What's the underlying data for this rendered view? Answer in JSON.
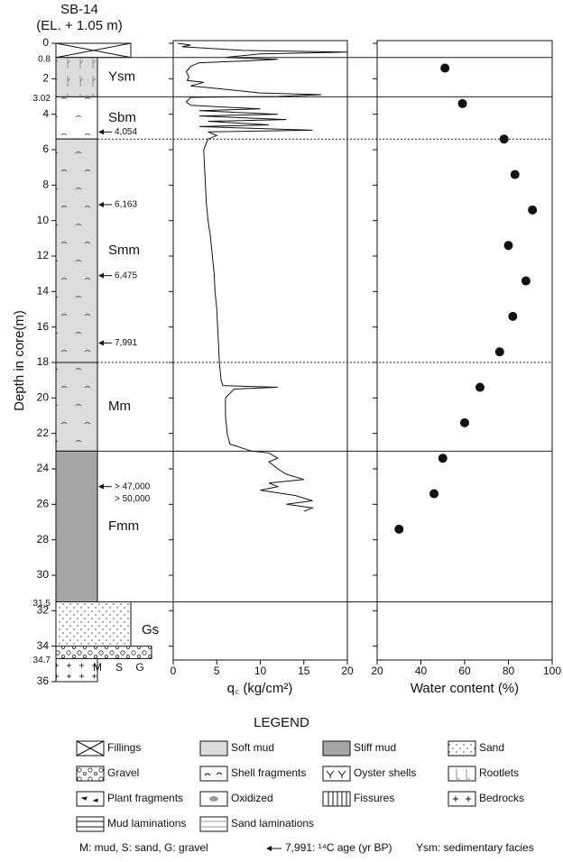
{
  "chart_data": [
    {
      "type": "log",
      "title": "SB-14",
      "subtitle": "(EL. + 1.05 m)",
      "ylabel": "Depth in core(m)",
      "ylim": [
        0,
        36
      ],
      "yticks": [
        0,
        2,
        4,
        6,
        8,
        10,
        12,
        14,
        16,
        18,
        20,
        22,
        24,
        26,
        28,
        30,
        32,
        34,
        36
      ],
      "boundary_labels": [
        0.8,
        3.02,
        31.5,
        34.7
      ],
      "grain_labels": [
        "M",
        "S",
        "G"
      ],
      "layers": [
        {
          "top": 0,
          "bottom": 0.8,
          "grain": "S",
          "color": "#ffffff",
          "pattern": "cross"
        },
        {
          "top": 0.8,
          "bottom": 3.02,
          "grain": "M",
          "color": "#dcdcdc",
          "pattern": "roots",
          "facies": "Ysm"
        },
        {
          "top": 3.02,
          "bottom": 5.4,
          "grain": "M",
          "color": "#ffffff",
          "pattern": "shells",
          "facies": "Sbm"
        },
        {
          "top": 5.4,
          "bottom": 18,
          "grain": "M",
          "color": "#dcdcdc",
          "pattern": "shells",
          "facies": "Smm"
        },
        {
          "top": 18,
          "bottom": 23,
          "grain": "M",
          "color": "#dcdcdc",
          "pattern": "shells",
          "facies": "Mm"
        },
        {
          "top": 23,
          "bottom": 31.5,
          "grain": "M",
          "color": "#a6a6a6",
          "pattern": "none",
          "facies": "Fmm"
        },
        {
          "top": 31.5,
          "bottom": 34.7,
          "grain": "S",
          "color": "#ffffff",
          "pattern": "sand",
          "facies": "Gs"
        },
        {
          "top": 34,
          "bottom": 34.7,
          "grain": "G",
          "color": "#ffffff",
          "pattern": "gravel"
        },
        {
          "top": 34.7,
          "bottom": 36,
          "grain": "M",
          "color": "#ffffff",
          "pattern": "plus"
        }
      ],
      "ages": [
        {
          "depth": 5.0,
          "label": "4,054"
        },
        {
          "depth": 9.1,
          "label": "6,163"
        },
        {
          "depth": 13.1,
          "label": "6,475"
        },
        {
          "depth": 16.9,
          "label": "7,991"
        },
        {
          "depth": 25.0,
          "label": "> 47,000"
        },
        {
          "depth": 25.7,
          "label": "> 50,000"
        }
      ],
      "boundaries": [
        {
          "depth": 0.8,
          "style": "solid"
        },
        {
          "depth": 3.02,
          "style": "solid"
        },
        {
          "depth": 5.4,
          "style": "dotted"
        },
        {
          "depth": 18,
          "style": "dotted"
        },
        {
          "depth": 23,
          "style": "solid"
        },
        {
          "depth": 31.5,
          "style": "solid"
        }
      ]
    },
    {
      "type": "line",
      "xlabel": "q꜀ (kg/cm²)",
      "xlim": [
        0,
        20
      ],
      "xticks": [
        0,
        5,
        10,
        15,
        20
      ],
      "color": "#111111",
      "depth": [
        0,
        0.1,
        0.2,
        0.4,
        0.5,
        0.6,
        0.8,
        0.9,
        1.0,
        1.1,
        1.3,
        1.6,
        1.9,
        2.1,
        2.2,
        2.4,
        2.6,
        2.8,
        2.9,
        3.0,
        3.05,
        3.3,
        3.5,
        3.7,
        3.8,
        4.0,
        4.1,
        4.3,
        4.4,
        4.6,
        4.7,
        4.9,
        5.0,
        5.2,
        5.4,
        6,
        7,
        8,
        9,
        10,
        11,
        12,
        13,
        14,
        15,
        16,
        17,
        18,
        19,
        19.3,
        19.4,
        19.5,
        20,
        21,
        22,
        22.6,
        23,
        23.1,
        23.4,
        23.6,
        24,
        24.3,
        24.6,
        24.8,
        25,
        25.2,
        25.5,
        25.8,
        26.0,
        26.2,
        26.4
      ],
      "values": [
        0.5,
        2,
        1,
        8,
        20,
        10,
        6,
        12,
        8,
        3,
        2,
        1.5,
        1.8,
        1.6,
        3.5,
        2,
        6,
        10,
        17,
        12,
        2,
        1.5,
        2,
        10,
        3,
        12,
        3,
        13,
        4,
        11,
        3,
        16,
        4,
        5,
        4,
        3.5,
        3.6,
        3.7,
        3.8,
        4,
        4.3,
        4.5,
        4.7,
        4.8,
        5,
        5.1,
        5.2,
        5.3,
        5.5,
        5.7,
        12,
        7,
        6,
        6,
        6.2,
        6.5,
        9,
        11,
        12,
        11,
        12,
        13,
        15,
        11,
        12,
        10,
        14,
        16,
        13,
        16,
        15
      ]
    },
    {
      "type": "scatter",
      "xlabel": "Water content (%)",
      "xlim": [
        20,
        100
      ],
      "xticks": [
        20,
        40,
        60,
        80,
        100
      ],
      "color": "#111111",
      "depth": [
        1.4,
        3.4,
        5.4,
        7.4,
        9.4,
        11.4,
        13.4,
        15.4,
        17.4,
        19.4,
        21.4,
        23.4,
        25.4,
        27.4
      ],
      "values": [
        51,
        59,
        78,
        83,
        91,
        80,
        88,
        82,
        76,
        67,
        60,
        50,
        46,
        30
      ]
    }
  ],
  "legend": {
    "title": "LEGEND",
    "items": [
      "Fillings",
      "Soft mud",
      "Stiff mud",
      "Sand",
      "Gravel",
      "Shell fragments",
      "Oyster shells",
      "Rootlets",
      "Plant fragments",
      "Oxidized",
      "Fissures",
      "Bedrocks",
      "Mud laminations",
      "Sand laminations"
    ],
    "notes": [
      "M: mud, S: sand, G: gravel",
      "7,991: ¹⁴C age (yr BP)",
      "Ysm: sedimentary facies"
    ]
  }
}
